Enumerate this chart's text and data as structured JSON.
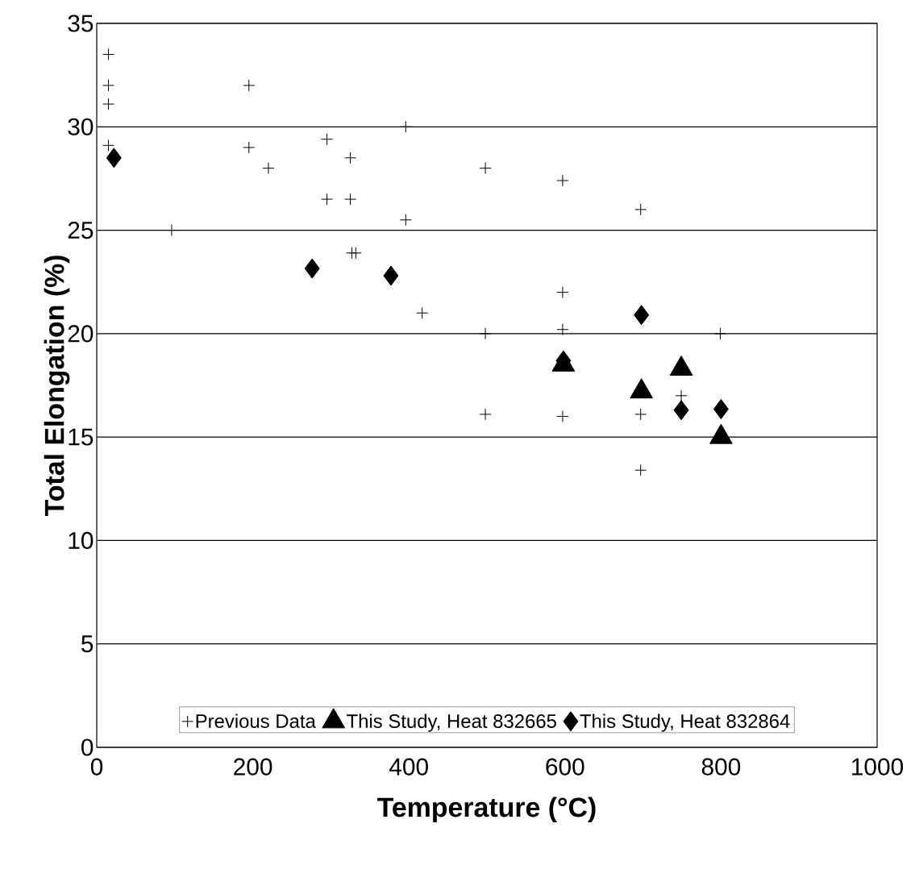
{
  "chart_data": {
    "type": "scatter",
    "xlabel": "Temperature (°C)",
    "ylabel": "Total Elongation (%)",
    "xlim": [
      0,
      1000
    ],
    "ylim": [
      0,
      35
    ],
    "xticks": [
      0,
      200,
      400,
      600,
      800,
      1000
    ],
    "yticks": [
      0,
      5,
      10,
      15,
      20,
      25,
      30,
      35
    ],
    "grid": "y",
    "legend": "bottom",
    "series": [
      {
        "name": "Previous Data",
        "color": "#000000",
        "marker": "cross",
        "x": [
          15,
          15,
          15,
          15,
          96,
          195,
          195,
          220,
          295,
          295,
          325,
          325,
          327,
          332,
          396,
          396,
          417,
          498,
          498,
          498,
          597,
          597,
          597,
          597,
          697,
          697,
          697,
          749,
          799
        ],
        "values": [
          33.5,
          32.0,
          31.1,
          29.1,
          25.0,
          32.0,
          29.0,
          28.0,
          29.4,
          26.5,
          28.5,
          26.5,
          23.9,
          23.9,
          30.0,
          25.5,
          21.0,
          28.0,
          20.0,
          16.1,
          27.4,
          22.0,
          20.2,
          16.0,
          26.0,
          16.1,
          13.4,
          17.0,
          20.0
        ]
      },
      {
        "name": "This Study, Heat 832665",
        "color": "#000000",
        "marker": "triangle",
        "x": [
          598,
          698,
          749,
          800
        ],
        "values": [
          18.5,
          17.2,
          18.3,
          15.0
        ]
      },
      {
        "name": "This Study, Heat 832864",
        "color": "#000000",
        "marker": "diamond",
        "x": [
          22,
          276,
          377,
          598,
          698,
          749,
          800
        ],
        "values": [
          28.5,
          23.15,
          22.8,
          18.7,
          20.9,
          16.3,
          16.35
        ]
      }
    ]
  }
}
